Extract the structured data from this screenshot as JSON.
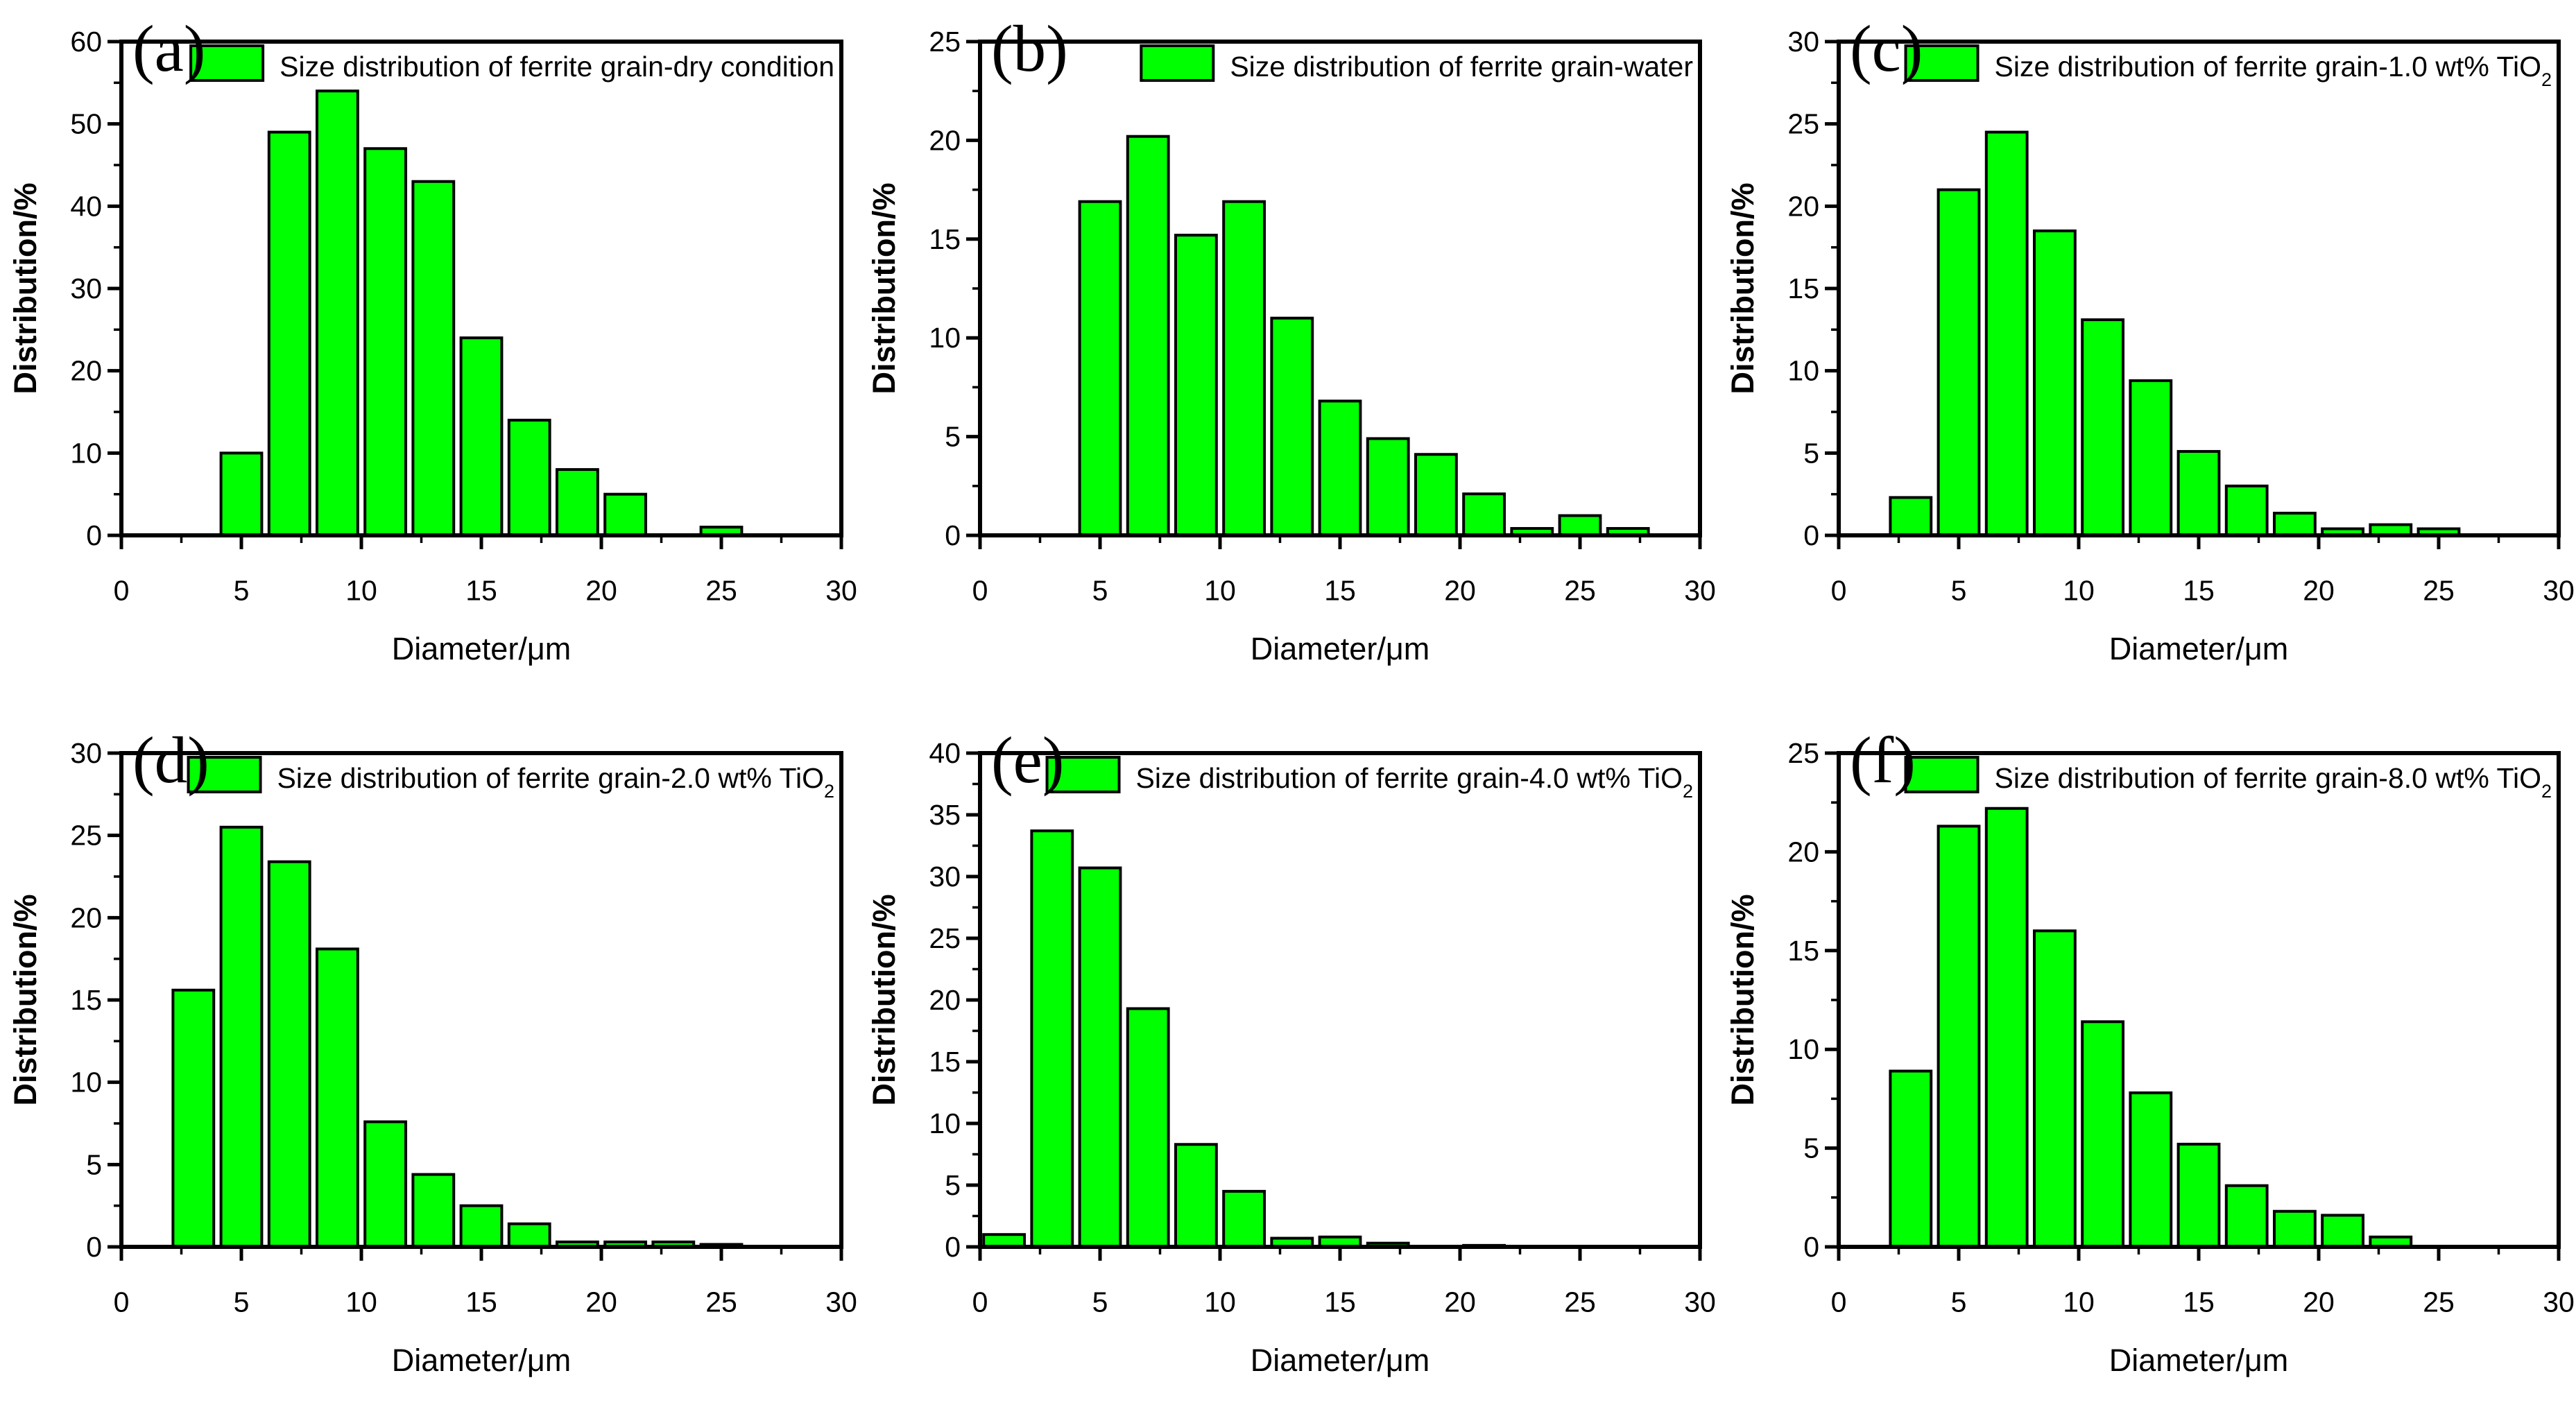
{
  "figure": {
    "title": "Size distribution histograms of ferrite grain under different conditions",
    "bar_fill_color": "#00ff00",
    "bar_stroke_color": "#000000",
    "axis_color": "#000000",
    "background_color": "#ffffff",
    "xlabel": "Diameter/μm",
    "ylabel": "Distribution/%"
  },
  "chart_data": [
    {
      "type": "bar",
      "panel_letter": "(a)",
      "legend": "Size distribution of ferrite grain-dry condition",
      "legend_sub": "",
      "xlabel": "Diameter/μm",
      "ylabel": "Distribution/%",
      "xlim": [
        0,
        30
      ],
      "ylim": [
        0,
        60
      ],
      "x_major": 5,
      "x_minor": 2.5,
      "y_major": 10,
      "y_minor": 5,
      "bin_width": 2,
      "x": [
        5,
        7,
        9,
        11,
        13,
        15,
        17,
        19,
        21,
        25
      ],
      "values": [
        10,
        49,
        54,
        47,
        43,
        24,
        14,
        8,
        5,
        1
      ],
      "grid": false,
      "legend_position": "top-right"
    },
    {
      "type": "bar",
      "panel_letter": "(b)",
      "legend": "Size distribution of ferrite grain-water",
      "legend_sub": "",
      "xlabel": "Diameter/μm",
      "ylabel": "Distribution/%",
      "xlim": [
        0,
        30
      ],
      "ylim": [
        0,
        25
      ],
      "x_major": 5,
      "x_minor": 2.5,
      "y_major": 5,
      "y_minor": 2.5,
      "bin_width": 2,
      "x": [
        5,
        7,
        9,
        11,
        13,
        15,
        17,
        19,
        21,
        23,
        25,
        27
      ],
      "values": [
        16.9,
        20.2,
        15.2,
        16.9,
        11,
        6.8,
        4.9,
        4.1,
        2.1,
        0.35,
        1.0,
        0.35
      ],
      "grid": false,
      "legend_position": "top-right"
    },
    {
      "type": "bar",
      "panel_letter": "(c)",
      "legend": "Size distribution of ferrite grain-1.0 wt% TiO",
      "legend_sub": "2",
      "xlabel": "Diameter/μm",
      "ylabel": "Distribution/%",
      "xlim": [
        0,
        30
      ],
      "ylim": [
        0,
        30
      ],
      "x_major": 5,
      "x_minor": 2.5,
      "y_major": 5,
      "y_minor": 2.5,
      "bin_width": 2,
      "x": [
        3,
        5,
        7,
        9,
        11,
        13,
        15,
        17,
        19,
        21,
        23,
        25
      ],
      "values": [
        2.3,
        21,
        24.5,
        18.5,
        13.1,
        9.4,
        5.1,
        3.0,
        1.35,
        0.4,
        0.65,
        0.4
      ],
      "grid": false,
      "legend_position": "top-right"
    },
    {
      "type": "bar",
      "panel_letter": "(d)",
      "legend": "Size distribution of ferrite grain-2.0 wt% TiO",
      "legend_sub": "2",
      "xlabel": "Diameter/μm",
      "ylabel": "Distribution/%",
      "xlim": [
        0,
        30
      ],
      "ylim": [
        0,
        30
      ],
      "x_major": 5,
      "x_minor": 2.5,
      "y_major": 5,
      "y_minor": 2.5,
      "bin_width": 2,
      "x": [
        3,
        5,
        7,
        9,
        11,
        13,
        15,
        17,
        19,
        21,
        23,
        25
      ],
      "values": [
        15.6,
        25.5,
        23.4,
        18.1,
        7.6,
        4.4,
        2.5,
        1.4,
        0.3,
        0.3,
        0.3,
        0.15
      ],
      "grid": false,
      "legend_position": "top-right"
    },
    {
      "type": "bar",
      "panel_letter": "(e)",
      "legend": "Size distribution of ferrite grain-4.0 wt% TiO",
      "legend_sub": "2",
      "xlabel": "Diameter/μm",
      "ylabel": "Distribution/%",
      "xlim": [
        0,
        30
      ],
      "ylim": [
        0,
        40
      ],
      "x_major": 5,
      "x_minor": 2.5,
      "y_major": 5,
      "y_minor": 2.5,
      "bin_width": 2,
      "x": [
        1,
        3,
        5,
        7,
        9,
        11,
        13,
        15,
        17,
        21
      ],
      "values": [
        1.0,
        33.7,
        30.7,
        19.3,
        8.3,
        4.5,
        0.7,
        0.8,
        0.3,
        0.12
      ],
      "grid": false,
      "legend_position": "top-right"
    },
    {
      "type": "bar",
      "panel_letter": "(f)",
      "legend": "Size distribution of ferrite grain-8.0 wt% TiO",
      "legend_sub": "2",
      "xlabel": "Diameter/μm",
      "ylabel": "Distribution/%",
      "xlim": [
        0,
        30
      ],
      "ylim": [
        0,
        25
      ],
      "x_major": 5,
      "x_minor": 2.5,
      "y_major": 5,
      "y_minor": 2.5,
      "bin_width": 2,
      "x": [
        3,
        5,
        7,
        9,
        11,
        13,
        15,
        17,
        19,
        21,
        23
      ],
      "values": [
        8.9,
        21.3,
        22.2,
        16.0,
        11.4,
        7.8,
        5.2,
        3.1,
        1.8,
        1.6,
        0.5
      ],
      "grid": false,
      "legend_position": "top-right"
    }
  ]
}
